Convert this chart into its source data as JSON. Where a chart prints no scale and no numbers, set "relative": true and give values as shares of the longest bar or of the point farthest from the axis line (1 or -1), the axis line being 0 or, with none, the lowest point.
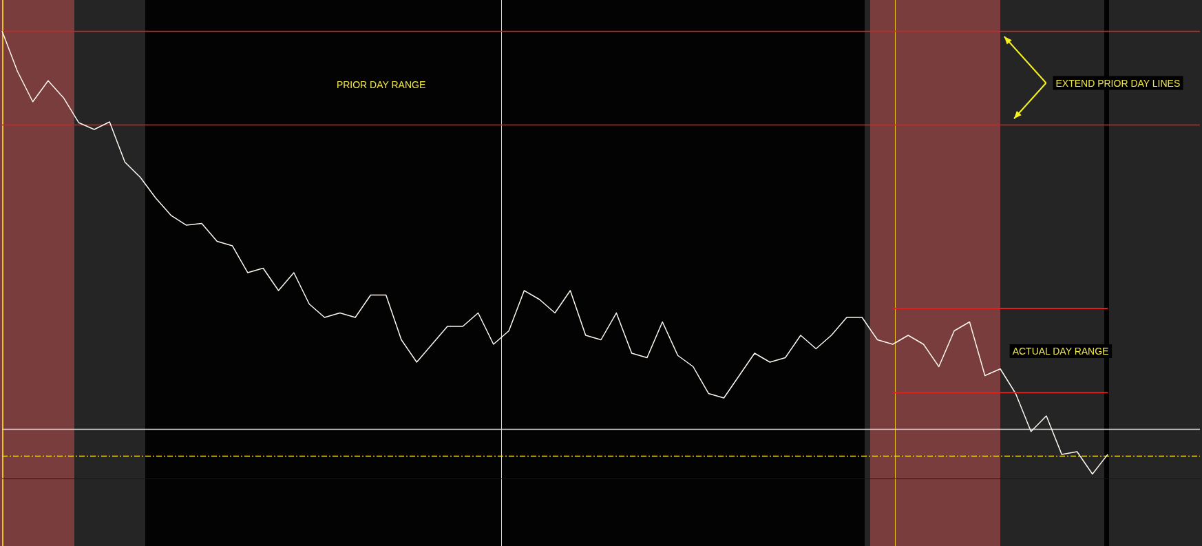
{
  "chart_data": {
    "type": "line",
    "relative": true,
    "categories": [
      null,
      null,
      null,
      null,
      null,
      null,
      null,
      null,
      null,
      null,
      null,
      null,
      null,
      null,
      null,
      null,
      null,
      null,
      null,
      null,
      null,
      null,
      null,
      null,
      null,
      null,
      null,
      null,
      null,
      null,
      null,
      null,
      null,
      null,
      null,
      null,
      null,
      null,
      null,
      null,
      null,
      null,
      null,
      null,
      null,
      null,
      null,
      null,
      null,
      null,
      null,
      null,
      null,
      null,
      null,
      null,
      null,
      null,
      null,
      null,
      null,
      null,
      null,
      null,
      null,
      null,
      null,
      null,
      null,
      null,
      null,
      null,
      null,
      null,
      null,
      null,
      null,
      null,
      null
    ],
    "series": [
      {
        "color": "#fff8f0",
        "values": [
          1.0,
          0.91,
          0.842,
          0.889,
          0.851,
          0.795,
          0.78,
          0.797,
          0.707,
          0.673,
          0.627,
          0.588,
          0.566,
          0.57,
          0.53,
          0.52,
          0.46,
          0.47,
          0.42,
          0.46,
          0.39,
          0.36,
          0.37,
          0.36,
          0.41,
          0.41,
          0.31,
          0.26,
          0.3,
          0.34,
          0.34,
          0.37,
          0.3,
          0.33,
          0.42,
          0.4,
          0.37,
          0.42,
          0.32,
          0.31,
          0.37,
          0.28,
          0.27,
          0.35,
          0.275,
          0.25,
          0.19,
          0.18,
          0.23,
          0.28,
          0.26,
          0.27,
          0.32,
          0.29,
          0.32,
          0.36,
          0.36,
          0.31,
          0.3,
          0.32,
          0.3,
          0.25,
          0.33,
          0.35,
          0.23,
          0.245,
          0.19,
          0.105,
          0.14,
          0.054,
          0.06,
          0.01,
          0.054,
          null,
          null,
          null,
          null,
          null,
          null
        ]
      },
      {
        "color": "#e0201c",
        "values": [
          null,
          null,
          null,
          null,
          null,
          null,
          null,
          null,
          null,
          null,
          null,
          null,
          null,
          null,
          null,
          null,
          null,
          null,
          null,
          null,
          null,
          null,
          null,
          null,
          null,
          null,
          null,
          null,
          null,
          null,
          null,
          null,
          null,
          null,
          null,
          null,
          null,
          null,
          null,
          null,
          null,
          null,
          null,
          null,
          null,
          null,
          null,
          null,
          null,
          null,
          null,
          null,
          null,
          null,
          null,
          null,
          null,
          null,
          0.38,
          0.38,
          0.38,
          0.38,
          0.38,
          0.38,
          0.38,
          0.38,
          0.38,
          0.38,
          0.38,
          0.38,
          0.38,
          0.38,
          0.38,
          null,
          null,
          null,
          null,
          null,
          null
        ]
      },
      {
        "color": "#e0201c",
        "values": [
          null,
          null,
          null,
          null,
          null,
          null,
          null,
          null,
          null,
          null,
          null,
          null,
          null,
          null,
          null,
          null,
          null,
          null,
          null,
          null,
          null,
          null,
          null,
          null,
          null,
          null,
          null,
          null,
          null,
          null,
          null,
          null,
          null,
          null,
          null,
          null,
          null,
          null,
          null,
          null,
          null,
          null,
          null,
          null,
          null,
          null,
          null,
          null,
          null,
          null,
          null,
          null,
          null,
          null,
          null,
          null,
          null,
          null,
          0.192,
          0.192,
          0.192,
          0.192,
          0.192,
          0.192,
          0.192,
          0.192,
          0.192,
          0.192,
          0.192,
          0.192,
          0.192,
          0.192,
          0.192,
          null,
          null,
          null,
          null,
          null,
          null
        ]
      }
    ],
    "ref_lines": [
      {
        "axis": "y",
        "value": 1.0,
        "color": "#e0201c",
        "line_style": "solid"
      },
      {
        "axis": "y",
        "value": 0.792,
        "color": "#e0201c",
        "line_style": "solid"
      },
      {
        "axis": "y",
        "value": 0.05,
        "color": "#f0e020",
        "line_style": "dashed"
      },
      {
        "axis": "y",
        "value": 0.108,
        "color": "#d8d8d8",
        "line_style": "solid"
      }
    ],
    "annotations": [
      "PRIOR DAY RANGE",
      "EXTEND PRIOR DAY LINES",
      "ACTUAL DAY RANGE"
    ]
  }
}
